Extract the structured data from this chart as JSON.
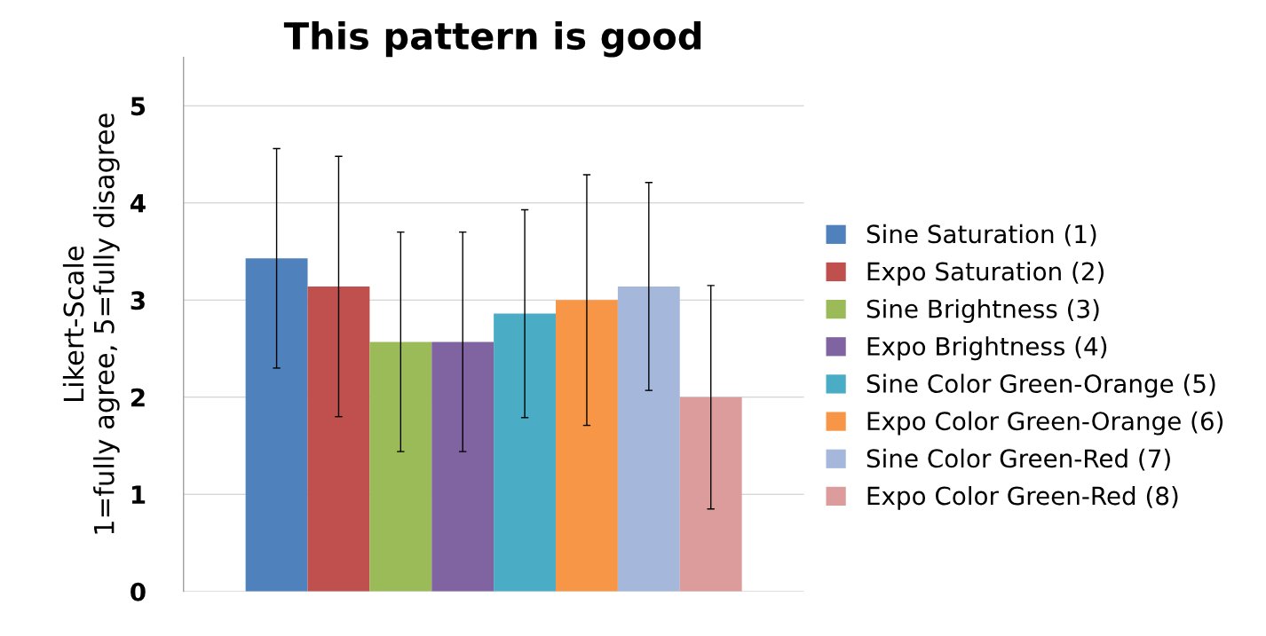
{
  "chart_data": {
    "type": "bar",
    "title": "This pattern is good",
    "ylabel": "Likert-Scale\n1=fully agree, 5=fully disagree",
    "categories": [
      null
    ],
    "series": [
      {
        "name": "Sine Saturation (1)",
        "color": "#4f81bd",
        "values": [
          3.43
        ],
        "errors": [
          1.13
        ]
      },
      {
        "name": "Expo Saturation (2)",
        "color": "#c0504d",
        "values": [
          3.14
        ],
        "errors": [
          1.34
        ]
      },
      {
        "name": "Sine Brightness (3)",
        "color": "#9bbb59",
        "values": [
          2.57
        ],
        "errors": [
          1.13
        ]
      },
      {
        "name": "Expo Brightness (4)",
        "color": "#8064a2",
        "values": [
          2.57
        ],
        "errors": [
          1.13
        ]
      },
      {
        "name": "Sine Color Green-Orange (5)",
        "color": "#4bacc6",
        "values": [
          2.86
        ],
        "errors": [
          1.07
        ]
      },
      {
        "name": "Expo Color Green-Orange (6)",
        "color": "#f79646",
        "values": [
          3.0
        ],
        "errors": [
          1.29
        ]
      },
      {
        "name": "Sine Color Green-Red (7)",
        "color": "#a5b8dc",
        "values": [
          3.14
        ],
        "errors": [
          1.07
        ]
      },
      {
        "name": "Expo Color Green-Red (8)",
        "color": "#dc9c9b",
        "values": [
          2.0
        ],
        "errors": [
          1.15
        ]
      }
    ],
    "ylim": [
      0,
      5.5
    ],
    "yticks": [
      0,
      1,
      2,
      3,
      4,
      5
    ],
    "grid": "y",
    "legend": "right"
  }
}
